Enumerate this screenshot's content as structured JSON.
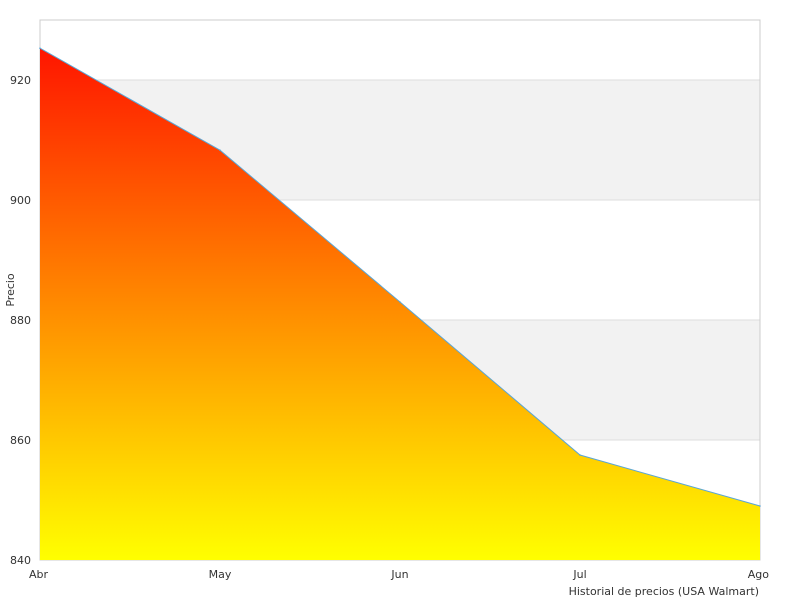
{
  "chart_data": {
    "type": "area",
    "title": "",
    "xlabel": "",
    "ylabel": "Precio",
    "caption": "Historial de precios (USA Walmart)",
    "categories": [
      "Abr",
      "May",
      "Jun",
      "Jul",
      "Ago"
    ],
    "x": [
      0,
      1,
      2,
      3,
      4
    ],
    "values": [
      925.3,
      908.3,
      883.0,
      857.5,
      849.0
    ],
    "ylim": [
      840,
      930
    ],
    "yticks": [
      840,
      860,
      880,
      900,
      920
    ],
    "grid": true,
    "alternate_bands": true,
    "legend": "none",
    "colors": {
      "gradient_top": "#ff1500",
      "gradient_bottom": "#ffff00",
      "line": "#5aa6d6",
      "band": "#f2f2f2",
      "grid": "#dddddd",
      "frame": "#cccccc"
    }
  }
}
